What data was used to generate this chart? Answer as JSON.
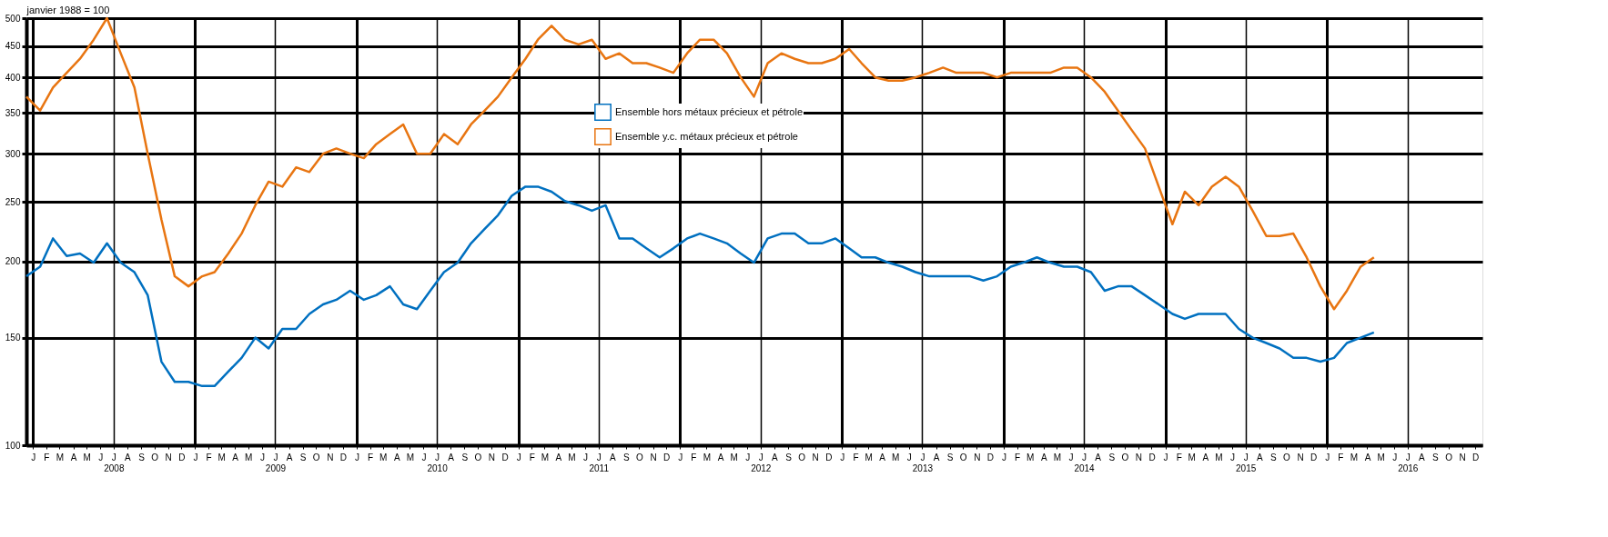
{
  "chart_data": {
    "type": "line",
    "ylabel": "janvier 1988 = 100",
    "log": "y",
    "grid": true,
    "legend": "top",
    "marker": "none",
    "line_style": "solid",
    "xlim": [
      "2008-01",
      "2017-01"
    ],
    "ylim": [
      100,
      500
    ],
    "yticks": [
      100,
      150,
      200,
      250,
      300,
      350,
      400,
      450,
      500
    ],
    "x": [
      "2008-01",
      "2008-02",
      "2008-03",
      "2008-04",
      "2008-05",
      "2008-06",
      "2008-07",
      "2008-08",
      "2008-09",
      "2008-10",
      "2008-11",
      "2008-12",
      "2009-01",
      "2009-02",
      "2009-03",
      "2009-04",
      "2009-05",
      "2009-06",
      "2009-07",
      "2009-08",
      "2009-09",
      "2009-10",
      "2009-11",
      "2009-12",
      "2010-01",
      "2010-02",
      "2010-03",
      "2010-04",
      "2010-05",
      "2010-06",
      "2010-07",
      "2010-08",
      "2010-09",
      "2010-10",
      "2010-11",
      "2010-12",
      "2011-01",
      "2011-02",
      "2011-03",
      "2011-04",
      "2011-05",
      "2011-06",
      "2011-07",
      "2011-08",
      "2011-09",
      "2011-10",
      "2011-11",
      "2011-12",
      "2012-01",
      "2012-02",
      "2012-03",
      "2012-04",
      "2012-05",
      "2012-06",
      "2012-07",
      "2012-08",
      "2012-09",
      "2012-10",
      "2012-11",
      "2012-12",
      "2013-01",
      "2013-02",
      "2013-03",
      "2013-04",
      "2013-05",
      "2013-06",
      "2013-07",
      "2013-08",
      "2013-09",
      "2013-10",
      "2013-11",
      "2013-12",
      "2014-01",
      "2014-02",
      "2014-03",
      "2014-04",
      "2014-05",
      "2014-06",
      "2014-07",
      "2014-08",
      "2014-09",
      "2014-10",
      "2014-11",
      "2014-12",
      "2015-01",
      "2015-02",
      "2015-03",
      "2015-04",
      "2015-05",
      "2015-06",
      "2015-07",
      "2015-08",
      "2015-09",
      "2015-10",
      "2015-11",
      "2015-12",
      "2016-01",
      "2016-02",
      "2016-03",
      "2016-04",
      "2016-05"
    ],
    "series": [
      {
        "name": "Ensemble hors métaux précieux et pétrole",
        "color": "#0070c0",
        "values": [
          189,
          196,
          218,
          204,
          206,
          199,
          214,
          199,
          192,
          176,
          137,
          127,
          127,
          125,
          125,
          132,
          139,
          150,
          144,
          155,
          155,
          164,
          170,
          173,
          179,
          173,
          176,
          182,
          170,
          167,
          179,
          192,
          199,
          214,
          226,
          238,
          256,
          265,
          265,
          260,
          251,
          247,
          242,
          247,
          218,
          218,
          210,
          203,
          210,
          218,
          222,
          218,
          214,
          206,
          199,
          218,
          222,
          222,
          214,
          214,
          218,
          210,
          203,
          203,
          199,
          196,
          192,
          189,
          189,
          189,
          189,
          186,
          189,
          196,
          199,
          203,
          199,
          196,
          196,
          192,
          179,
          182,
          182,
          176,
          170,
          164,
          161,
          164,
          164,
          164,
          155,
          150,
          147,
          144,
          139,
          139,
          137,
          139,
          147,
          150,
          153
        ]
      },
      {
        "name": "Ensemble y.c. métaux précieux et pétrole",
        "color": "#e87511",
        "values": [
          372,
          353,
          385,
          407,
          429,
          461,
          500,
          438,
          385,
          300,
          234,
          189,
          182,
          189,
          192,
          206,
          222,
          247,
          270,
          265,
          285,
          280,
          300,
          306,
          300,
          295,
          311,
          323,
          335,
          300,
          300,
          323,
          311,
          335,
          353,
          372,
          400,
          429,
          461,
          486,
          461,
          453,
          461,
          429,
          438,
          422,
          422,
          415,
          407,
          438,
          461,
          461,
          438,
          400,
          372,
          422,
          438,
          429,
          422,
          422,
          429,
          445,
          422,
          400,
          395,
          395,
          400,
          407,
          415,
          407,
          407,
          407,
          400,
          407,
          407,
          407,
          407,
          415,
          415,
          400,
          379,
          353,
          328,
          306,
          265,
          230,
          260,
          247,
          265,
          275,
          265,
          242,
          220,
          220,
          222,
          203,
          182,
          167,
          179,
          196,
          203
        ]
      }
    ],
    "xticks": [
      {
        "value": "2008-01-16",
        "label": "J"
      },
      {
        "value": "2008-02-15",
        "label": "F"
      },
      {
        "value": "2008-03-16",
        "label": "M"
      },
      {
        "value": "2008-04-16",
        "label": "A"
      },
      {
        "value": "2008-05-16",
        "label": "M"
      },
      {
        "value": "2008-06-16",
        "label": "J"
      },
      {
        "value": "2008-07-16",
        "label": "J\n2008"
      },
      {
        "value": "2008-08-16",
        "label": "A"
      },
      {
        "value": "2008-09-16",
        "label": "S"
      },
      {
        "value": "2008-10-16",
        "label": "O"
      },
      {
        "value": "2008-11-16",
        "label": "N"
      },
      {
        "value": "2008-12-16",
        "label": "D"
      },
      {
        "value": "2009-01-16",
        "label": "J"
      },
      {
        "value": "2009-02-15",
        "label": "F"
      },
      {
        "value": "2009-03-16",
        "label": "M"
      },
      {
        "value": "2009-04-16",
        "label": "A"
      },
      {
        "value": "2009-05-16",
        "label": "M"
      },
      {
        "value": "2009-06-16",
        "label": "J"
      },
      {
        "value": "2009-07-16",
        "label": "J\n2009"
      },
      {
        "value": "2009-08-16",
        "label": "A"
      },
      {
        "value": "2009-09-16",
        "label": "S"
      },
      {
        "value": "2009-10-16",
        "label": "O"
      },
      {
        "value": "2009-11-16",
        "label": "N"
      },
      {
        "value": "2009-12-16",
        "label": "D"
      },
      {
        "value": "2010-01-16",
        "label": "J"
      },
      {
        "value": "2010-02-15",
        "label": "F"
      },
      {
        "value": "2010-03-16",
        "label": "M"
      },
      {
        "value": "2010-04-16",
        "label": "A"
      },
      {
        "value": "2010-05-16",
        "label": "M"
      },
      {
        "value": "2010-06-16",
        "label": "J"
      },
      {
        "value": "2010-07-16",
        "label": "J\n2010"
      },
      {
        "value": "2010-08-16",
        "label": "A"
      },
      {
        "value": "2010-09-16",
        "label": "S"
      },
      {
        "value": "2010-10-16",
        "label": "O"
      },
      {
        "value": "2010-11-16",
        "label": "N"
      },
      {
        "value": "2010-12-16",
        "label": "D"
      },
      {
        "value": "2011-01-16",
        "label": "J"
      },
      {
        "value": "2011-02-15",
        "label": "F"
      },
      {
        "value": "2011-03-16",
        "label": "M"
      },
      {
        "value": "2011-04-16",
        "label": "A"
      },
      {
        "value": "2011-05-16",
        "label": "M"
      },
      {
        "value": "2011-06-16",
        "label": "J"
      },
      {
        "value": "2011-07-16",
        "label": "J\n2011"
      },
      {
        "value": "2011-08-16",
        "label": "A"
      },
      {
        "value": "2011-09-16",
        "label": "S"
      },
      {
        "value": "2011-10-16",
        "label": "O"
      },
      {
        "value": "2011-11-16",
        "label": "N"
      },
      {
        "value": "2011-12-16",
        "label": "D"
      },
      {
        "value": "2012-01-16",
        "label": "J"
      },
      {
        "value": "2012-02-15",
        "label": "F"
      },
      {
        "value": "2012-03-16",
        "label": "M"
      },
      {
        "value": "2012-04-16",
        "label": "A"
      },
      {
        "value": "2012-05-16",
        "label": "M"
      },
      {
        "value": "2012-06-16",
        "label": "J"
      },
      {
        "value": "2012-07-16",
        "label": "J\n2012"
      },
      {
        "value": "2012-08-16",
        "label": "A"
      },
      {
        "value": "2012-09-16",
        "label": "S"
      },
      {
        "value": "2012-10-16",
        "label": "O"
      },
      {
        "value": "2012-11-16",
        "label": "N"
      },
      {
        "value": "2012-12-16",
        "label": "D"
      },
      {
        "value": "2013-01-16",
        "label": "J"
      },
      {
        "value": "2013-02-15",
        "label": "F"
      },
      {
        "value": "2013-03-16",
        "label": "M"
      },
      {
        "value": "2013-04-16",
        "label": "A"
      },
      {
        "value": "2013-05-16",
        "label": "M"
      },
      {
        "value": "2013-06-16",
        "label": "J"
      },
      {
        "value": "2013-07-16",
        "label": "J\n2013"
      },
      {
        "value": "2013-08-16",
        "label": "A"
      },
      {
        "value": "2013-09-16",
        "label": "S"
      },
      {
        "value": "2013-10-16",
        "label": "O"
      },
      {
        "value": "2013-11-16",
        "label": "N"
      },
      {
        "value": "2013-12-16",
        "label": "D"
      },
      {
        "value": "2014-01-16",
        "label": "J"
      },
      {
        "value": "2014-02-15",
        "label": "F"
      },
      {
        "value": "2014-03-16",
        "label": "M"
      },
      {
        "value": "2014-04-16",
        "label": "A"
      },
      {
        "value": "2014-05-16",
        "label": "M"
      },
      {
        "value": "2014-06-16",
        "label": "J"
      },
      {
        "value": "2014-07-16",
        "label": "J\n2014"
      },
      {
        "value": "2014-08-16",
        "label": "A"
      },
      {
        "value": "2014-09-16",
        "label": "S"
      },
      {
        "value": "2014-10-16",
        "label": "O"
      },
      {
        "value": "2014-11-16",
        "label": "N"
      },
      {
        "value": "2014-12-16",
        "label": "D"
      },
      {
        "value": "2015-01-16",
        "label": "J"
      },
      {
        "value": "2015-02-15",
        "label": "F"
      },
      {
        "value": "2015-03-16",
        "label": "M"
      },
      {
        "value": "2015-04-16",
        "label": "A"
      },
      {
        "value": "2015-05-16",
        "label": "M"
      },
      {
        "value": "2015-06-16",
        "label": "J"
      },
      {
        "value": "2015-07-16",
        "label": "J\n2015"
      },
      {
        "value": "2015-08-16",
        "label": "A"
      },
      {
        "value": "2015-09-16",
        "label": "S"
      },
      {
        "value": "2015-10-16",
        "label": "O"
      },
      {
        "value": "2015-11-16",
        "label": "N"
      },
      {
        "value": "2015-12-16",
        "label": "D"
      },
      {
        "value": "2016-01-16",
        "label": "J"
      },
      {
        "value": "2016-02-15",
        "label": "F"
      },
      {
        "value": "2016-03-16",
        "label": "M"
      },
      {
        "value": "2016-04-16",
        "label": "A"
      },
      {
        "value": "2016-05-16",
        "label": "M"
      },
      {
        "value": "2016-06-16",
        "label": "J"
      },
      {
        "value": "2016-07-16",
        "label": "J\n2016"
      },
      {
        "value": "2016-08-16",
        "label": "A"
      },
      {
        "value": "2016-09-16",
        "label": "S"
      },
      {
        "value": "2016-10-16",
        "label": "O"
      },
      {
        "value": "2016-11-16",
        "label": "N"
      },
      {
        "value": "2016-12-16",
        "label": "D"
      }
    ]
  }
}
